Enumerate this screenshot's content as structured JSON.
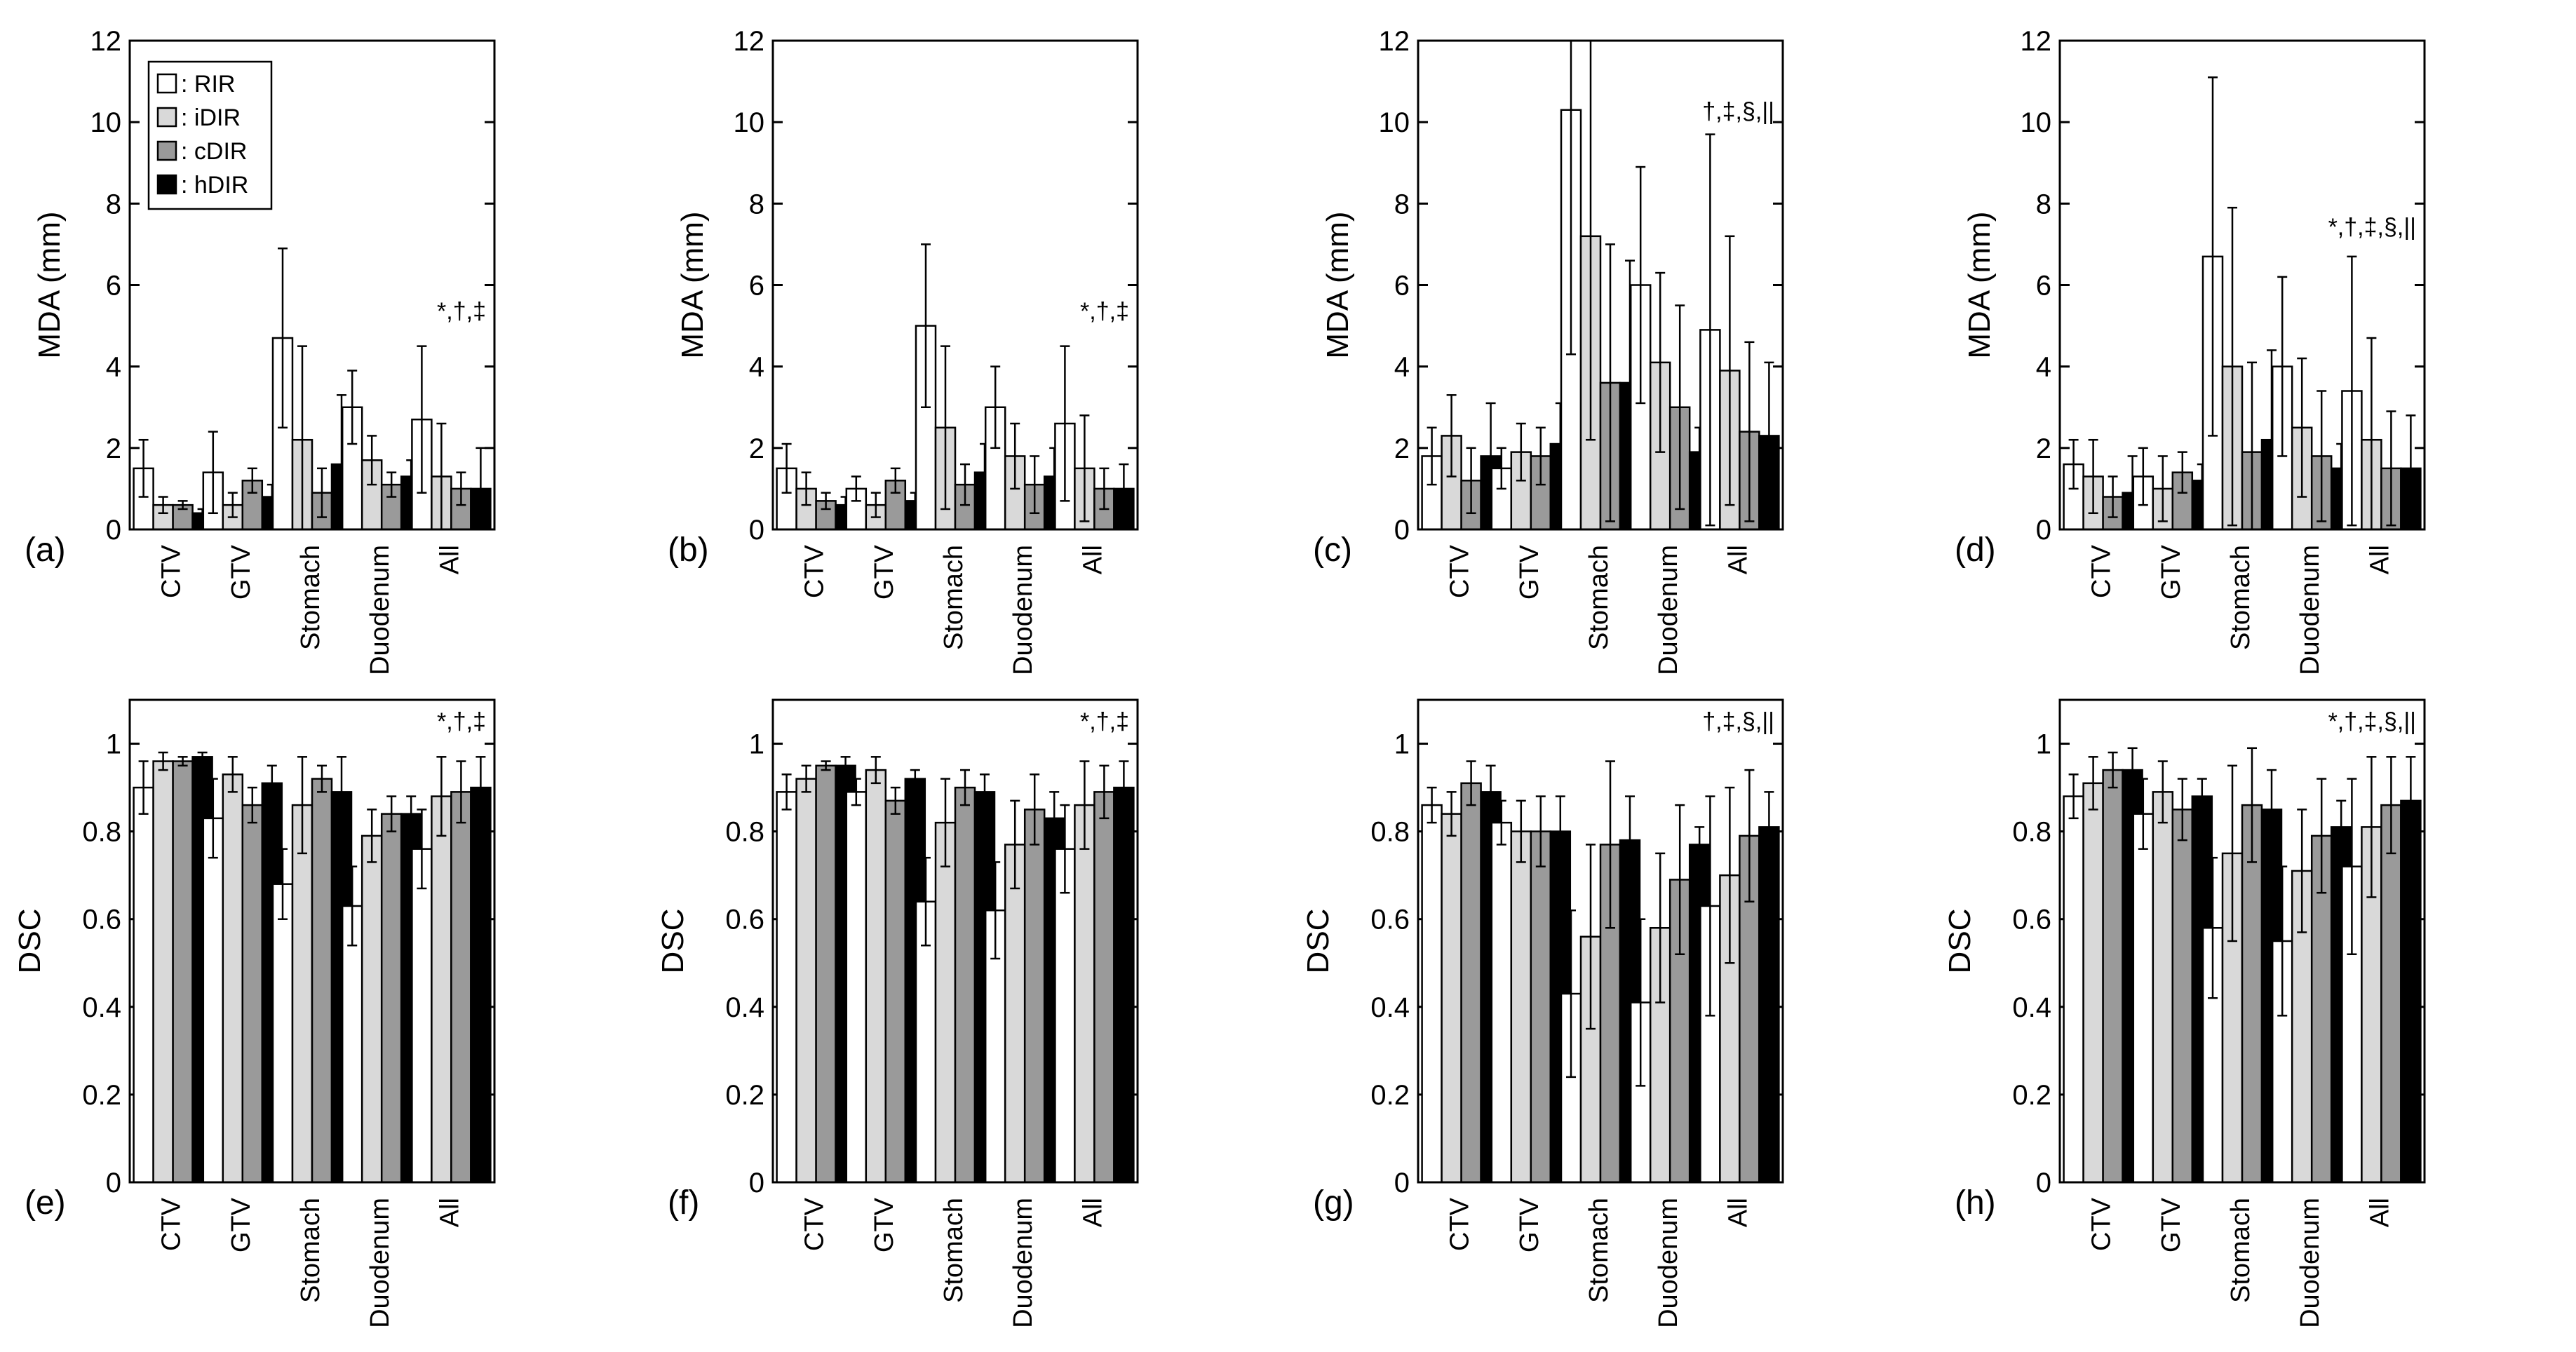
{
  "legend": {
    "items": [
      {
        "label": ": RIR",
        "color": "#ffffff"
      },
      {
        "label": ": iDIR",
        "color": "#d9d9d9"
      },
      {
        "label": ": cDIR",
        "color": "#9a9a9a"
      },
      {
        "label": ": hDIR",
        "color": "#000000"
      }
    ]
  },
  "chart_data": [
    {
      "type": "bar",
      "panel": "(a)",
      "ylabel": "MDA (mm)",
      "ylim": [
        0,
        12
      ],
      "yticks": [
        "0",
        "2",
        "4",
        "6",
        "8",
        "10",
        "12"
      ],
      "categories": [
        "CTV",
        "GTV",
        "Stomach",
        "Duodenum",
        "All"
      ],
      "significance": "*,†,‡",
      "series": [
        {
          "name": "RIR",
          "values": [
            1.5,
            1.4,
            4.7,
            3.0,
            2.7
          ],
          "errors": [
            0.7,
            1.0,
            2.2,
            0.9,
            1.8
          ]
        },
        {
          "name": "iDIR",
          "values": [
            0.6,
            0.6,
            2.2,
            1.7,
            1.3
          ],
          "errors": [
            0.2,
            0.3,
            2.3,
            0.6,
            1.3
          ]
        },
        {
          "name": "cDIR",
          "values": [
            0.6,
            1.2,
            0.9,
            1.1,
            1.0
          ],
          "errors": [
            0.1,
            0.3,
            0.6,
            0.3,
            0.4
          ]
        },
        {
          "name": "hDIR",
          "values": [
            0.4,
            0.8,
            1.6,
            1.3,
            1.0
          ],
          "errors": [
            0.1,
            0.3,
            1.7,
            0.4,
            1.0
          ]
        }
      ]
    },
    {
      "type": "bar",
      "panel": "(b)",
      "ylabel": "MDA (mm)",
      "ylim": [
        0,
        12
      ],
      "yticks": [
        "0",
        "2",
        "4",
        "6",
        "8",
        "10",
        "12"
      ],
      "categories": [
        "CTV",
        "GTV",
        "Stomach",
        "Duodenum",
        "All"
      ],
      "significance": "*,†,‡",
      "series": [
        {
          "name": "RIR",
          "values": [
            1.5,
            1.0,
            5.0,
            3.0,
            2.6
          ],
          "errors": [
            0.6,
            0.3,
            2.0,
            1.0,
            1.9
          ]
        },
        {
          "name": "iDIR",
          "values": [
            1.0,
            0.6,
            2.5,
            1.8,
            1.5
          ],
          "errors": [
            0.4,
            0.3,
            2.0,
            0.8,
            1.3
          ]
        },
        {
          "name": "cDIR",
          "values": [
            0.7,
            1.2,
            1.1,
            1.1,
            1.0
          ],
          "errors": [
            0.2,
            0.3,
            0.5,
            0.7,
            0.5
          ]
        },
        {
          "name": "hDIR",
          "values": [
            0.6,
            0.7,
            1.4,
            1.3,
            1.0
          ],
          "errors": [
            0.2,
            0.2,
            0.7,
            0.7,
            0.6
          ]
        }
      ]
    },
    {
      "type": "bar",
      "panel": "(c)",
      "ylabel": "MDA (mm)",
      "ylim": [
        0,
        12
      ],
      "yticks": [
        "0",
        "2",
        "4",
        "6",
        "8",
        "10",
        "12"
      ],
      "categories": [
        "CTV",
        "GTV",
        "Stomach",
        "Duodenum",
        "All"
      ],
      "significance": "†,‡,§,||",
      "series": [
        {
          "name": "RIR",
          "values": [
            1.8,
            1.5,
            10.3,
            6.0,
            4.9
          ],
          "errors": [
            0.7,
            0.5,
            6.0,
            2.9,
            4.8
          ]
        },
        {
          "name": "iDIR",
          "values": [
            2.3,
            1.9,
            7.2,
            4.1,
            3.9
          ],
          "errors": [
            1.0,
            0.7,
            5.0,
            2.2,
            3.3
          ]
        },
        {
          "name": "cDIR",
          "values": [
            1.2,
            1.8,
            3.6,
            3.0,
            2.4
          ],
          "errors": [
            0.8,
            0.7,
            3.4,
            2.5,
            2.2
          ]
        },
        {
          "name": "hDIR",
          "values": [
            1.8,
            2.1,
            3.6,
            1.9,
            2.3
          ],
          "errors": [
            1.3,
            1.0,
            3.0,
            0.6,
            1.8
          ]
        }
      ]
    },
    {
      "type": "bar",
      "panel": "(d)",
      "ylabel": "MDA (mm)",
      "ylim": [
        0,
        12
      ],
      "yticks": [
        "0",
        "2",
        "4",
        "6",
        "8",
        "10",
        "12"
      ],
      "categories": [
        "CTV",
        "GTV",
        "Stomach",
        "Duodenum",
        "All"
      ],
      "significance": "*,†,‡,§,||",
      "series": [
        {
          "name": "RIR",
          "values": [
            1.6,
            1.3,
            6.7,
            4.0,
            3.4
          ],
          "errors": [
            0.6,
            0.7,
            4.4,
            2.2,
            3.3
          ]
        },
        {
          "name": "iDIR",
          "values": [
            1.3,
            1.0,
            4.0,
            2.5,
            2.2
          ],
          "errors": [
            0.9,
            0.8,
            3.9,
            1.7,
            2.5
          ]
        },
        {
          "name": "cDIR",
          "values": [
            0.8,
            1.4,
            1.9,
            1.8,
            1.5
          ],
          "errors": [
            0.5,
            0.5,
            2.2,
            1.6,
            1.4
          ]
        },
        {
          "name": "hDIR",
          "values": [
            0.9,
            1.2,
            2.2,
            1.5,
            1.5
          ],
          "errors": [
            0.9,
            0.4,
            2.2,
            0.6,
            1.3
          ]
        }
      ]
    },
    {
      "type": "bar",
      "panel": "(e)",
      "ylabel": "DSC",
      "ylim": [
        0,
        1.1
      ],
      "yticks": [
        "0",
        "0.2",
        "0.4",
        "0.6",
        "0.8",
        "1"
      ],
      "categories": [
        "CTV",
        "GTV",
        "Stomach",
        "Duodenum",
        "All"
      ],
      "significance": "*,†,‡",
      "series": [
        {
          "name": "RIR",
          "values": [
            0.9,
            0.83,
            0.68,
            0.63,
            0.76
          ],
          "errors": [
            0.06,
            0.09,
            0.08,
            0.09,
            0.09
          ]
        },
        {
          "name": "iDIR",
          "values": [
            0.96,
            0.93,
            0.86,
            0.79,
            0.88
          ],
          "errors": [
            0.02,
            0.04,
            0.11,
            0.06,
            0.09
          ]
        },
        {
          "name": "cDIR",
          "values": [
            0.96,
            0.86,
            0.92,
            0.84,
            0.89
          ],
          "errors": [
            0.01,
            0.04,
            0.03,
            0.04,
            0.07
          ]
        },
        {
          "name": "hDIR",
          "values": [
            0.97,
            0.91,
            0.89,
            0.84,
            0.9
          ],
          "errors": [
            0.01,
            0.04,
            0.08,
            0.04,
            0.07
          ]
        }
      ]
    },
    {
      "type": "bar",
      "panel": "(f)",
      "ylabel": "DSC",
      "ylim": [
        0,
        1.1
      ],
      "yticks": [
        "0",
        "0.2",
        "0.4",
        "0.6",
        "0.8",
        "1"
      ],
      "categories": [
        "CTV",
        "GTV",
        "Stomach",
        "Duodenum",
        "All"
      ],
      "significance": "*,†,‡",
      "series": [
        {
          "name": "RIR",
          "values": [
            0.89,
            0.89,
            0.64,
            0.62,
            0.76
          ],
          "errors": [
            0.04,
            0.03,
            0.1,
            0.11,
            0.1
          ]
        },
        {
          "name": "iDIR",
          "values": [
            0.92,
            0.94,
            0.82,
            0.77,
            0.86
          ],
          "errors": [
            0.03,
            0.03,
            0.1,
            0.1,
            0.1
          ]
        },
        {
          "name": "cDIR",
          "values": [
            0.95,
            0.87,
            0.9,
            0.85,
            0.89
          ],
          "errors": [
            0.01,
            0.03,
            0.04,
            0.08,
            0.06
          ]
        },
        {
          "name": "hDIR",
          "values": [
            0.95,
            0.92,
            0.89,
            0.83,
            0.9
          ],
          "errors": [
            0.02,
            0.02,
            0.04,
            0.06,
            0.06
          ]
        }
      ]
    },
    {
      "type": "bar",
      "panel": "(g)",
      "ylabel": "DSC",
      "ylim": [
        0,
        1.1
      ],
      "yticks": [
        "0",
        "0.2",
        "0.4",
        "0.6",
        "0.8",
        "1"
      ],
      "categories": [
        "CTV",
        "GTV",
        "Stomach",
        "Duodenum",
        "All"
      ],
      "significance": "†,‡,§,||",
      "series": [
        {
          "name": "RIR",
          "values": [
            0.86,
            0.82,
            0.43,
            0.41,
            0.63
          ],
          "errors": [
            0.04,
            0.05,
            0.19,
            0.19,
            0.25
          ]
        },
        {
          "name": "iDIR",
          "values": [
            0.84,
            0.8,
            0.56,
            0.58,
            0.7
          ],
          "errors": [
            0.05,
            0.07,
            0.21,
            0.17,
            0.2
          ]
        },
        {
          "name": "cDIR",
          "values": [
            0.91,
            0.8,
            0.77,
            0.69,
            0.79
          ],
          "errors": [
            0.05,
            0.08,
            0.19,
            0.17,
            0.15
          ]
        },
        {
          "name": "hDIR",
          "values": [
            0.89,
            0.8,
            0.78,
            0.77,
            0.81
          ],
          "errors": [
            0.06,
            0.08,
            0.1,
            0.04,
            0.08
          ]
        }
      ]
    },
    {
      "type": "bar",
      "panel": "(h)",
      "ylabel": "DSC",
      "ylim": [
        0,
        1.1
      ],
      "yticks": [
        "0",
        "0.2",
        "0.4",
        "0.6",
        "0.8",
        "1"
      ],
      "categories": [
        "CTV",
        "GTV",
        "Stomach",
        "Duodenum",
        "All"
      ],
      "significance": "*,†,‡,§,||",
      "series": [
        {
          "name": "RIR",
          "values": [
            0.88,
            0.84,
            0.58,
            0.55,
            0.72
          ],
          "errors": [
            0.05,
            0.08,
            0.16,
            0.17,
            0.2
          ]
        },
        {
          "name": "iDIR",
          "values": [
            0.91,
            0.89,
            0.75,
            0.71,
            0.81
          ],
          "errors": [
            0.06,
            0.07,
            0.2,
            0.14,
            0.16
          ]
        },
        {
          "name": "cDIR",
          "values": [
            0.94,
            0.85,
            0.86,
            0.79,
            0.86
          ],
          "errors": [
            0.04,
            0.07,
            0.13,
            0.13,
            0.11
          ]
        },
        {
          "name": "hDIR",
          "values": [
            0.94,
            0.88,
            0.85,
            0.81,
            0.87
          ],
          "errors": [
            0.05,
            0.04,
            0.09,
            0.06,
            0.1
          ]
        }
      ]
    }
  ]
}
